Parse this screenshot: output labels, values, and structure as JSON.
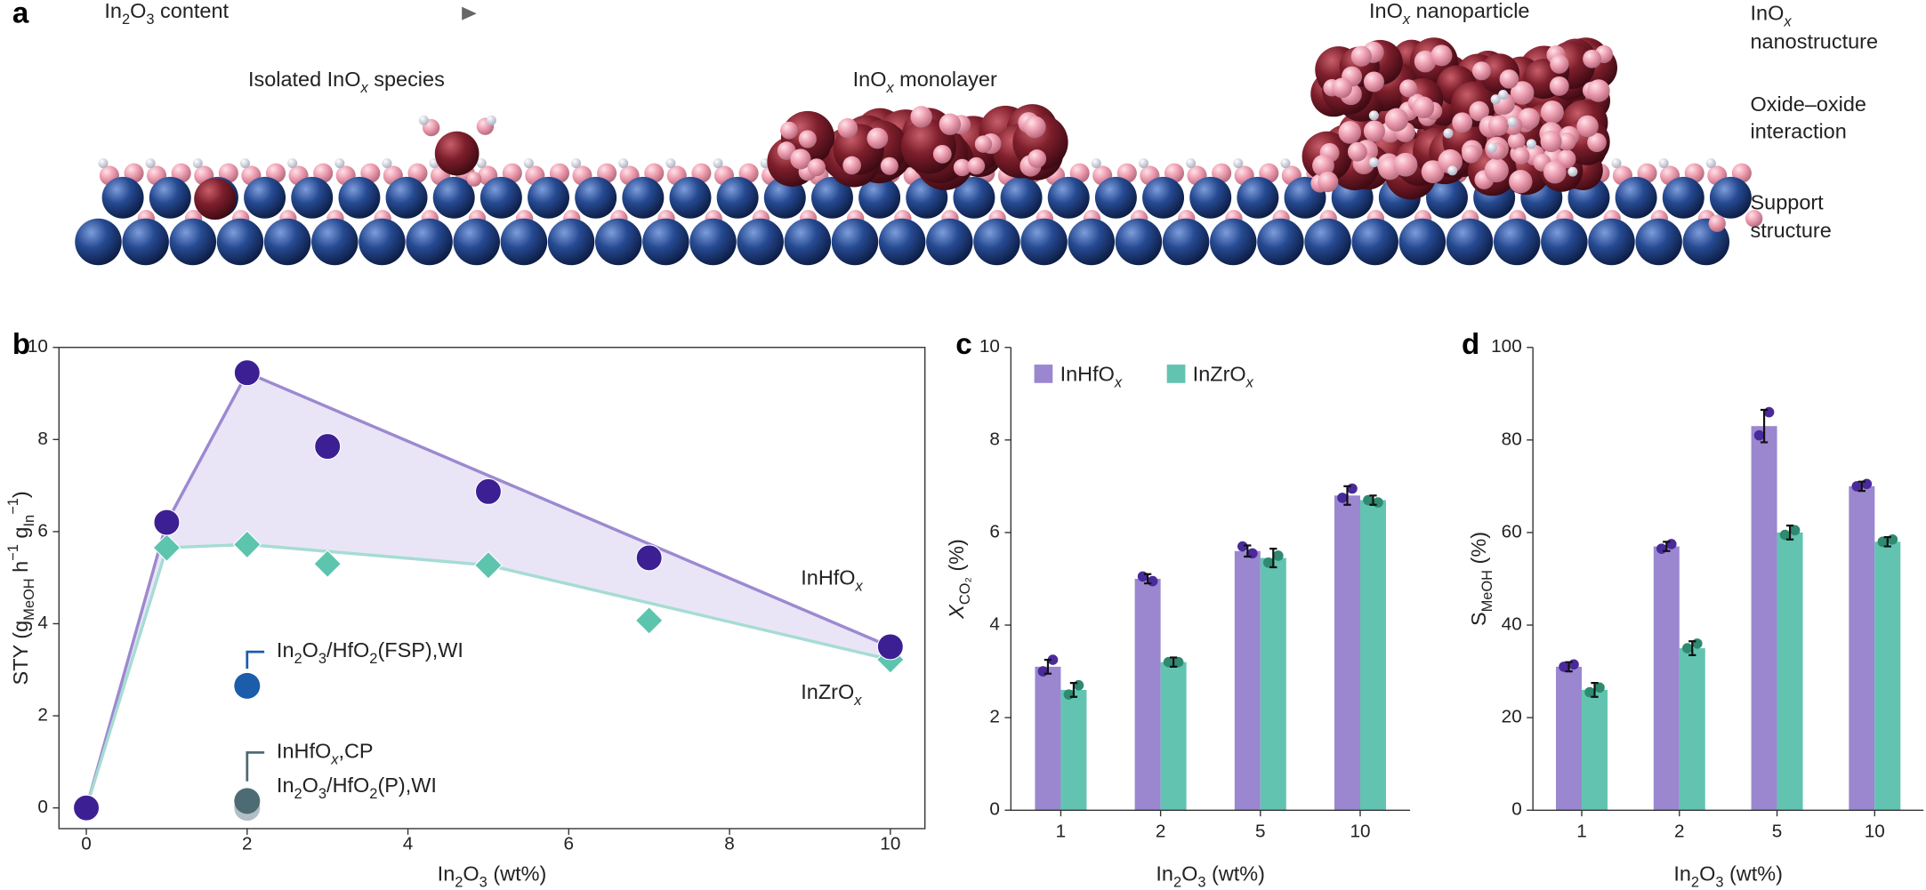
{
  "panel_labels": [
    "a",
    "b",
    "c",
    "d"
  ],
  "panel_a": {
    "arrow_label": [
      {
        "text": "In"
      },
      {
        "text": "2",
        "shift": "sub"
      },
      {
        "text": "O"
      },
      {
        "text": "3",
        "shift": "sub"
      },
      {
        "text": " content"
      }
    ],
    "stages": [
      [
        {
          "text": "Isolated InO"
        },
        {
          "text": "x",
          "shift": "sub",
          "italic": true
        },
        {
          "text": " species"
        }
      ],
      [
        {
          "text": "InO"
        },
        {
          "text": "x",
          "shift": "sub",
          "italic": true
        },
        {
          "text": " monolayer"
        }
      ],
      [
        {
          "text": "InO"
        },
        {
          "text": "x",
          "shift": "sub",
          "italic": true
        },
        {
          "text": " nanoparticle"
        }
      ]
    ],
    "levels": [
      [
        [
          {
            "text": "InO"
          },
          {
            "text": "x",
            "shift": "sub",
            "italic": true
          }
        ],
        "nanostructure"
      ],
      [
        "Oxide–oxide",
        "interaction"
      ],
      [
        "Support",
        "structure"
      ]
    ]
  },
  "chart_data": [
    {
      "type": "scatter",
      "xlabel": [
        {
          "text": "In"
        },
        {
          "text": "2",
          "shift": "sub"
        },
        {
          "text": "O"
        },
        {
          "text": "3",
          "shift": "sub"
        },
        {
          "text": " (wt%)"
        }
      ],
      "ylabel": [
        {
          "text": "STY (g"
        },
        {
          "text": "MeOH",
          "shift": "sub"
        },
        {
          "text": " h"
        },
        {
          "text": "−1",
          "shift": "super"
        },
        {
          "text": " g"
        },
        {
          "text": "In",
          "shift": "sub"
        },
        {
          "text": "−1",
          "shift": "super"
        },
        {
          "text": ")"
        }
      ],
      "xlim": [
        -0.34,
        10.43
      ],
      "ylim": [
        -0.45,
        10
      ],
      "xticks": [
        0,
        2,
        4,
        6,
        8,
        10
      ],
      "yticks": [
        0,
        2,
        4,
        6,
        8,
        10
      ],
      "fill_color": "#e9e5f7",
      "series": [
        {
          "name": [
            {
              "text": "InHfO"
            },
            {
              "text": "x",
              "shift": "sub",
              "italic": true
            }
          ],
          "color": "#3d1f94",
          "line_color": "#9d89d0",
          "marker": "circle",
          "x": [
            0,
            1,
            2,
            3,
            5,
            7,
            10
          ],
          "values": [
            0,
            6.2,
            9.45,
            7.85,
            6.87,
            5.43,
            3.5
          ]
        },
        {
          "name": [
            {
              "text": "InZrO"
            },
            {
              "text": "x",
              "shift": "sub",
              "italic": true
            }
          ],
          "color": "#5dc4ae",
          "line_color": "#a6dcd3",
          "marker": "diamond",
          "x": [
            0,
            1,
            2,
            3,
            5,
            7,
            10
          ],
          "values": [
            0,
            5.65,
            5.72,
            5.3,
            5.27,
            4.07,
            3.22
          ]
        }
      ],
      "references": [
        {
          "name": [
            {
              "text": "In"
            },
            {
              "text": "2",
              "shift": "sub"
            },
            {
              "text": "O"
            },
            {
              "text": "3",
              "shift": "sub"
            },
            {
              "text": "/HfO"
            },
            {
              "text": "2",
              "shift": "sub"
            },
            {
              "text": "(FSP),WI"
            }
          ],
          "color": "#1b5cab",
          "x": 2,
          "value": 2.65
        },
        {
          "name": [
            {
              "text": "InHfO"
            },
            {
              "text": "x",
              "shift": "sub",
              "italic": true
            },
            {
              "text": ",CP"
            }
          ],
          "color": "#4d6b73",
          "x": 2,
          "value": 0.15
        },
        {
          "name": [
            {
              "text": "In"
            },
            {
              "text": "2",
              "shift": "sub"
            },
            {
              "text": "O"
            },
            {
              "text": "3",
              "shift": "sub"
            },
            {
              "text": "/HfO"
            },
            {
              "text": "2",
              "shift": "sub"
            },
            {
              "text": "(P),WI"
            }
          ],
          "color": "#b3bfc7",
          "x": 2,
          "value": 0
        }
      ]
    },
    {
      "type": "bar",
      "categories": [
        "1",
        "2",
        "5",
        "10"
      ],
      "xlabel": [
        {
          "text": "In"
        },
        {
          "text": "2",
          "shift": "sub"
        },
        {
          "text": "O"
        },
        {
          "text": "3",
          "shift": "sub"
        },
        {
          "text": " (wt%)"
        }
      ],
      "ylabel": [
        {
          "text": "X",
          "italic": true
        },
        {
          "text": "CO₂",
          "shift": "sub"
        },
        {
          "text": " (%)"
        }
      ],
      "ylim": [
        0,
        10
      ],
      "yticks": [
        0,
        2,
        4,
        6,
        8,
        10
      ],
      "legend": "upper left",
      "series": [
        {
          "name": [
            {
              "text": "InHfO"
            },
            {
              "text": "x",
              "shift": "sub",
              "italic": true
            }
          ],
          "color": "#9a87cf",
          "point_color": "#4a2a9a",
          "values": [
            3.1,
            5.0,
            5.6,
            6.8
          ],
          "errors": [
            0.15,
            0.1,
            0.12,
            0.2
          ],
          "points": [
            [
              3.0,
              3.25
            ],
            [
              5.05,
              4.95
            ],
            [
              5.7,
              5.55
            ],
            [
              6.75,
              6.95
            ]
          ]
        },
        {
          "name": [
            {
              "text": "InZrO"
            },
            {
              "text": "x",
              "shift": "sub",
              "italic": true
            }
          ],
          "color": "#62c3b1",
          "point_color": "#2e8a70",
          "values": [
            2.6,
            3.2,
            5.45,
            6.7
          ],
          "errors": [
            0.15,
            0.1,
            0.2,
            0.1
          ],
          "points": [
            [
              2.5,
              2.7
            ],
            [
              3.2,
              3.2
            ],
            [
              5.35,
              5.5
            ],
            [
              6.7,
              6.65
            ]
          ]
        }
      ]
    },
    {
      "type": "bar",
      "categories": [
        "1",
        "2",
        "5",
        "10"
      ],
      "xlabel": [
        {
          "text": "In"
        },
        {
          "text": "2",
          "shift": "sub"
        },
        {
          "text": "O"
        },
        {
          "text": "3",
          "shift": "sub"
        },
        {
          "text": " (wt%)"
        }
      ],
      "ylabel": [
        {
          "text": "S"
        },
        {
          "text": "MeOH",
          "shift": "sub"
        },
        {
          "text": " (%)"
        }
      ],
      "ylim": [
        0,
        100
      ],
      "yticks": [
        0,
        20,
        40,
        60,
        80,
        100
      ],
      "series": [
        {
          "color": "#9a87cf",
          "point_color": "#4a2a9a",
          "values": [
            31,
            57,
            83,
            70
          ],
          "errors": [
            1,
            1,
            3.5,
            1
          ],
          "points": [
            [
              31,
              31.5
            ],
            [
              56.5,
              57.5
            ],
            [
              81,
              86
            ],
            [
              70,
              70.5
            ]
          ]
        },
        {
          "color": "#62c3b1",
          "point_color": "#2e8a70",
          "values": [
            26,
            35,
            60,
            58
          ],
          "errors": [
            1.5,
            1.5,
            1.5,
            1
          ],
          "points": [
            [
              25.5,
              26.5
            ],
            [
              35,
              36
            ],
            [
              59.5,
              60.5
            ],
            [
              58,
              58.5
            ]
          ]
        }
      ]
    }
  ]
}
